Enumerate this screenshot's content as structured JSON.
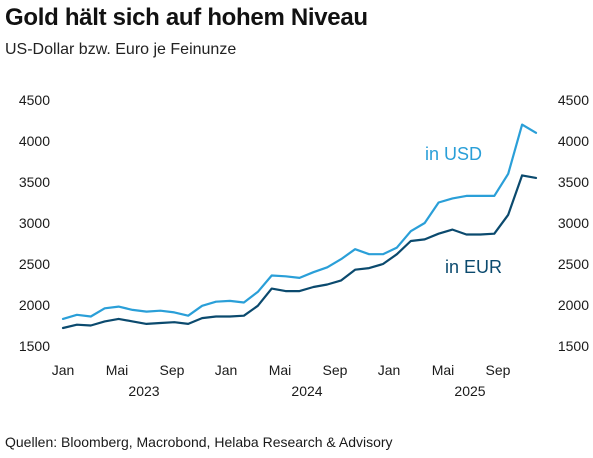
{
  "chart_data": {
    "type": "line",
    "title": "Gold hält sich auf hohem Niveau",
    "subtitle": "US-Dollar bzw. Euro je Feinunze",
    "xlabel": "",
    "ylabel": "",
    "ylim": [
      1500,
      4500
    ],
    "y_ticks": [
      "4500",
      "4000",
      "3500",
      "3000",
      "2500",
      "2000",
      "1500"
    ],
    "x_ticks": [
      "Jan",
      "Mai",
      "Sep",
      "Jan",
      "Mai",
      "Sep",
      "Jan",
      "Mai",
      "Sep"
    ],
    "years": [
      "2023",
      "2024",
      "2025"
    ],
    "grid": false,
    "legend": "inline labels",
    "x": [
      "2023-01",
      "2023-02",
      "2023-03",
      "2023-04",
      "2023-05",
      "2023-06",
      "2023-07",
      "2023-08",
      "2023-09",
      "2023-10",
      "2023-11",
      "2023-12",
      "2024-01",
      "2024-02",
      "2024-03",
      "2024-04",
      "2024-05",
      "2024-06",
      "2024-07",
      "2024-08",
      "2024-09",
      "2024-10",
      "2024-11",
      "2024-12",
      "2025-01",
      "2025-02",
      "2025-03",
      "2025-04",
      "2025-05",
      "2025-06",
      "2025-07",
      "2025-08",
      "2025-09",
      "2025-10",
      "2025-11"
    ],
    "series": [
      {
        "name": "in USD",
        "color": "#2a9fd8",
        "values": [
          1830,
          1880,
          1860,
          1960,
          1980,
          1940,
          1920,
          1930,
          1910,
          1870,
          1990,
          2040,
          2050,
          2030,
          2160,
          2360,
          2350,
          2330,
          2400,
          2460,
          2560,
          2680,
          2620,
          2620,
          2700,
          2900,
          3000,
          3250,
          3300,
          3330,
          3330,
          3330,
          3600,
          4200,
          4100
        ]
      },
      {
        "name": "in EUR",
        "color": "#0b4a6e",
        "values": [
          1720,
          1760,
          1750,
          1800,
          1830,
          1800,
          1770,
          1780,
          1790,
          1770,
          1840,
          1860,
          1860,
          1870,
          1990,
          2200,
          2170,
          2170,
          2220,
          2250,
          2300,
          2430,
          2450,
          2500,
          2620,
          2780,
          2800,
          2870,
          2920,
          2860,
          2860,
          2870,
          3100,
          3580,
          3550
        ]
      }
    ],
    "series_label_text": [
      "in USD",
      "in EUR"
    ]
  },
  "source": "Quellen: Bloomberg, Macrobond, Helaba Research & Advisory"
}
